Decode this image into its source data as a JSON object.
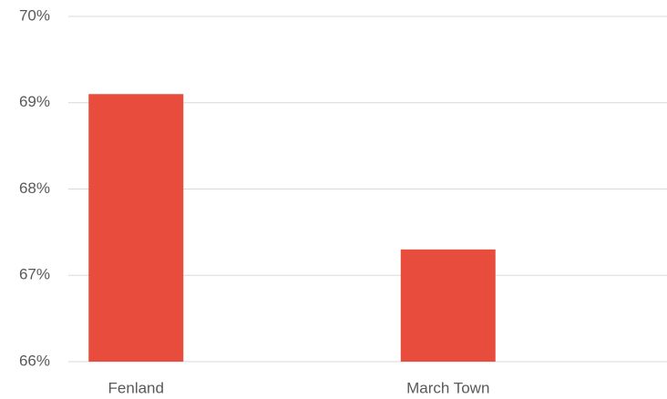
{
  "chart_data": {
    "type": "bar",
    "categories": [
      "Fenland",
      "March Town"
    ],
    "values": [
      69.1,
      67.3
    ],
    "color": "#e84c3d",
    "ylim": [
      66,
      70
    ],
    "yticks": [
      {
        "value": 66,
        "label": "66%"
      },
      {
        "value": 67,
        "label": "67%"
      },
      {
        "value": 68,
        "label": "68%"
      },
      {
        "value": 69,
        "label": "69%"
      },
      {
        "value": 70,
        "label": "70%"
      }
    ],
    "grid": true
  }
}
